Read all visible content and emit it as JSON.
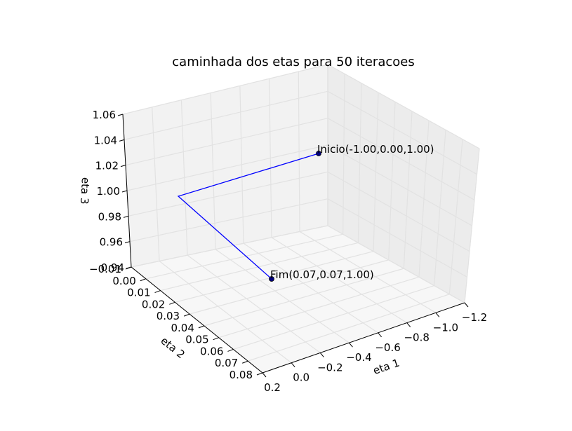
{
  "chart_data": {
    "type": "line3d",
    "title": "caminhada dos etas para 50 iteracoes",
    "xlabel": "eta 1",
    "ylabel": "eta 2",
    "zlabel": "eta 3",
    "xlim": [
      0.2,
      -1.2
    ],
    "ylim": [
      -0.01,
      0.08
    ],
    "zlim": [
      0.94,
      1.06
    ],
    "xticks": [
      "−1.2",
      "−1.0",
      "−0.8",
      "−0.6",
      "−0.4",
      "−0.2",
      "0.0",
      "0.2"
    ],
    "yticks": [
      "−0.01",
      "0.00",
      "0.01",
      "0.02",
      "0.03",
      "0.04",
      "0.05",
      "0.06",
      "0.07",
      "0.08"
    ],
    "zticks": [
      "0.94",
      "0.96",
      "0.98",
      "1.00",
      "1.02",
      "1.04",
      "1.06"
    ],
    "grid": true,
    "series": [
      {
        "color": "#0000ff",
        "points": [
          {
            "x": -1.0,
            "y": 0.0,
            "z": 1.0
          },
          {
            "x": 0.0,
            "y": 0.0,
            "z": 1.0
          },
          {
            "x": 0.07,
            "y": 0.07,
            "z": 1.0
          }
        ]
      }
    ],
    "annotations": [
      {
        "text": "Inicio(-1.00,0.00,1.00)",
        "x": -1.0,
        "y": 0.0,
        "z": 1.0
      },
      {
        "text": "Fim(0.07,0.07,1.00)",
        "x": 0.07,
        "y": 0.07,
        "z": 1.0
      }
    ]
  }
}
